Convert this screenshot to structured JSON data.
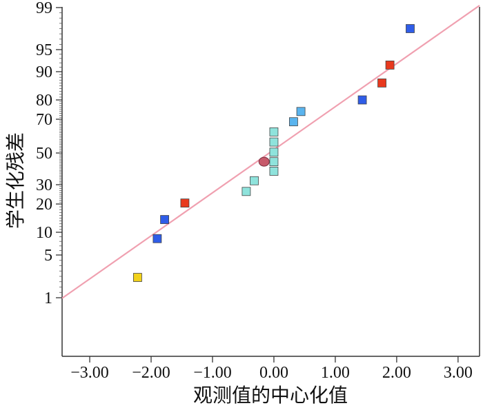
{
  "chart_data": {
    "type": "scatter",
    "title": "",
    "xlabel": "观测值的中心化值",
    "ylabel": "学生化残差",
    "xlim": [
      -3.45,
      3.35
    ],
    "x_ticks": [
      -3.0,
      -2.0,
      -1.0,
      0.0,
      1.0,
      2.0,
      3.0
    ],
    "x_tick_labels": [
      "−3.00",
      "−2.00",
      "−1.00",
      "0.00",
      "1.00",
      "2.00",
      "3.00"
    ],
    "y_scale": "normal-probability",
    "y_ticks": [
      1,
      5,
      10,
      20,
      30,
      50,
      70,
      80,
      90,
      95,
      99
    ],
    "y_tick_labels": [
      "1",
      "5",
      "10",
      "20",
      "30",
      "50",
      "70",
      "80",
      "90",
      "95",
      "99"
    ],
    "grid": false,
    "legend": "none",
    "fit_line": {
      "x": [
        -3.45,
        3.35
      ],
      "y": [
        0.95,
        99.2
      ],
      "color": "#f0a0b0"
    },
    "points": [
      {
        "x": -2.22,
        "y": 2.9,
        "color": "#f2d21b",
        "shape": "square"
      },
      {
        "x": -1.9,
        "y": 8.6,
        "color": "#2f5de8",
        "shape": "square"
      },
      {
        "x": -1.78,
        "y": 14.5,
        "color": "#2f5de8",
        "shape": "square"
      },
      {
        "x": -1.45,
        "y": 20.5,
        "color": "#e8391e",
        "shape": "square"
      },
      {
        "x": -0.45,
        "y": 26.5,
        "color": "#8fe3dc",
        "shape": "square"
      },
      {
        "x": -0.32,
        "y": 32.5,
        "color": "#8fe3dc",
        "shape": "square"
      },
      {
        "x": -0.16,
        "y": 44.5,
        "color": "#c75a6b",
        "shape": "circle"
      },
      {
        "x": 0.0,
        "y": 38.5,
        "color": "#8fe3dc",
        "shape": "square"
      },
      {
        "x": 0.0,
        "y": 44.5,
        "color": "#8fe3dc",
        "shape": "square"
      },
      {
        "x": 0.0,
        "y": 50.5,
        "color": "#8fe3dc",
        "shape": "square"
      },
      {
        "x": 0.0,
        "y": 56.5,
        "color": "#8fe3dc",
        "shape": "square"
      },
      {
        "x": 0.0,
        "y": 62.5,
        "color": "#8fe3dc",
        "shape": "square"
      },
      {
        "x": 0.32,
        "y": 68.5,
        "color": "#5ab4ee",
        "shape": "square"
      },
      {
        "x": 0.44,
        "y": 74.0,
        "color": "#5ab4ee",
        "shape": "square"
      },
      {
        "x": 1.44,
        "y": 80.0,
        "color": "#2f5de8",
        "shape": "square"
      },
      {
        "x": 1.76,
        "y": 86.0,
        "color": "#e8391e",
        "shape": "square"
      },
      {
        "x": 1.89,
        "y": 91.5,
        "color": "#e8391e",
        "shape": "square"
      },
      {
        "x": 2.22,
        "y": 97.0,
        "color": "#2f5de8",
        "shape": "square"
      }
    ]
  }
}
